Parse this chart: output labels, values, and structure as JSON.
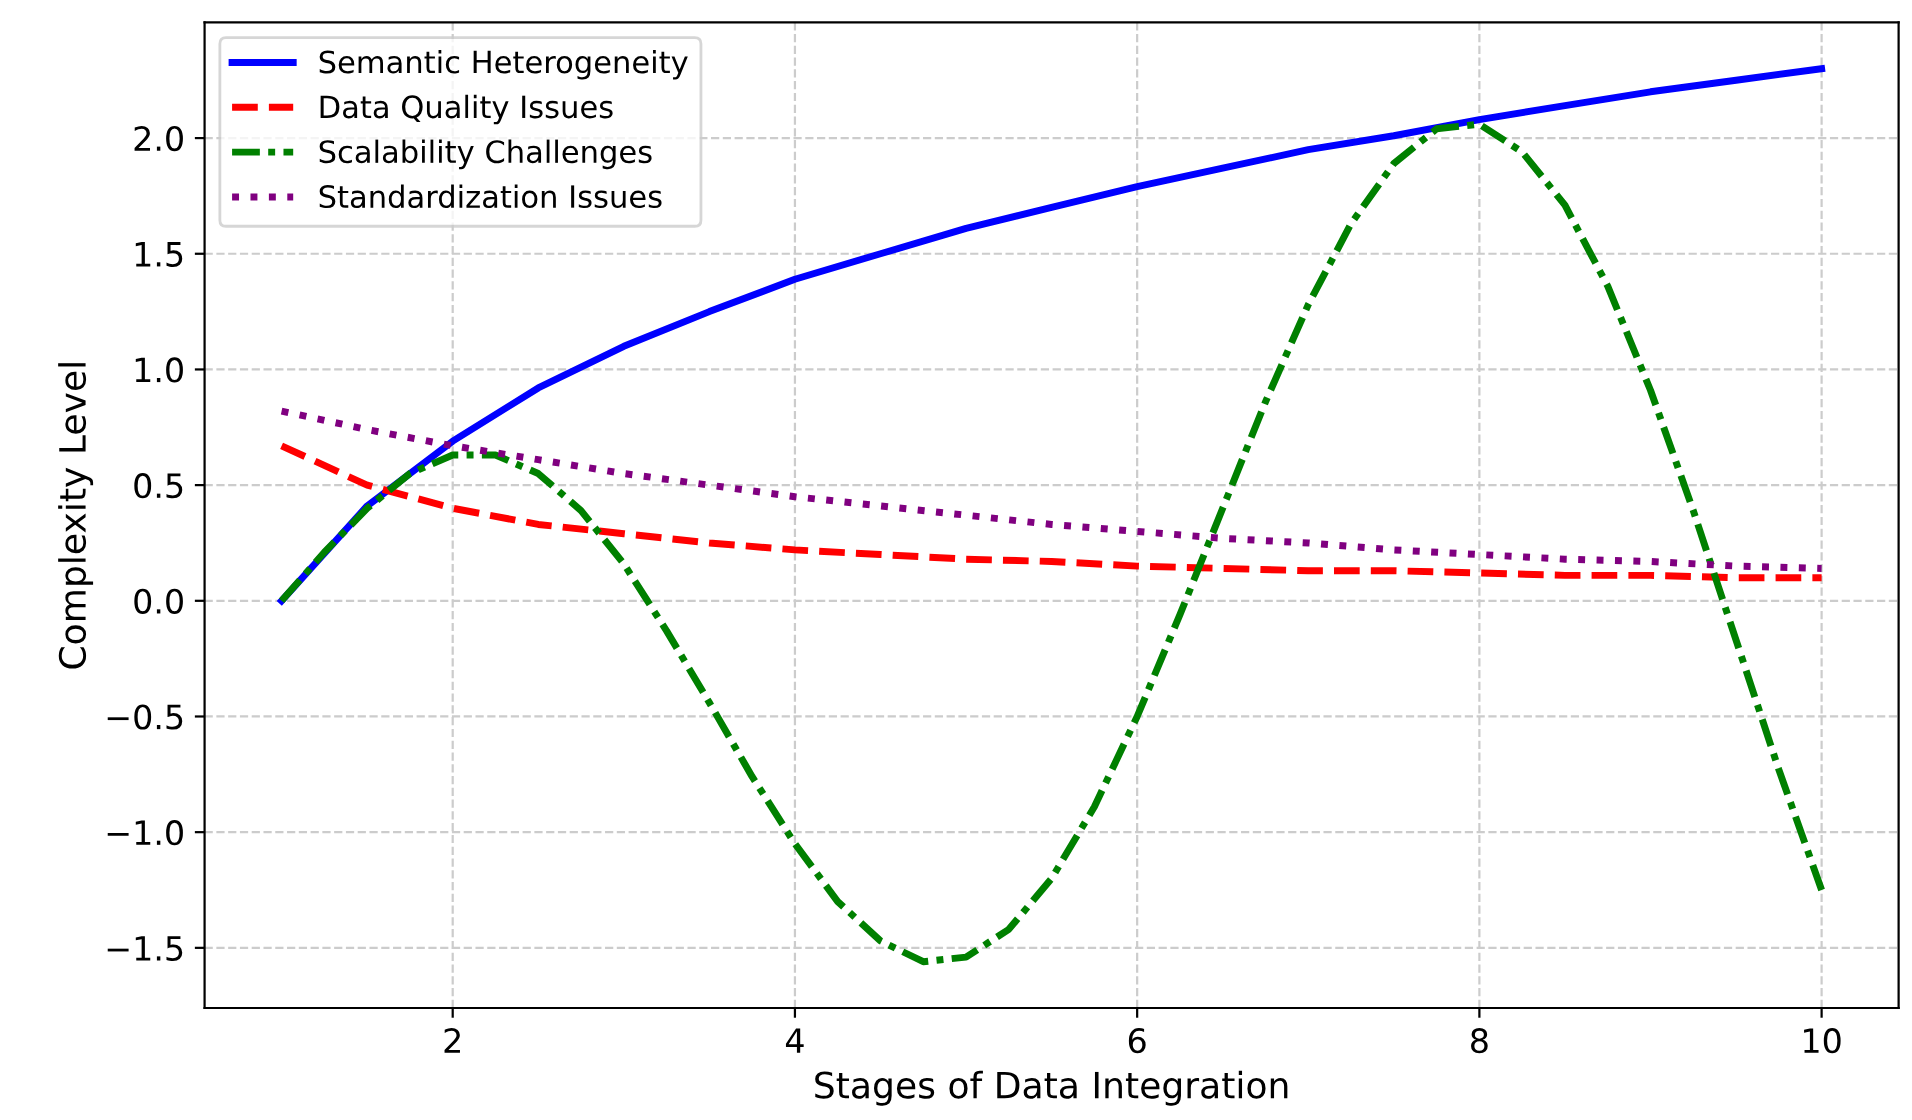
{
  "chart_data": {
    "type": "line",
    "xlabel": "Stages of Data Integration",
    "ylabel": "Complexity Level",
    "xlim": [
      0.55,
      10.45
    ],
    "xticks": [
      2,
      4,
      6,
      8,
      10
    ],
    "ylim": [
      -1.76,
      2.5
    ],
    "yticks": [
      {
        "value": -1.5,
        "label": "−1.5"
      },
      {
        "value": -1.0,
        "label": "−1.0"
      },
      {
        "value": -0.5,
        "label": "−0.5"
      },
      {
        "value": 0.0,
        "label": "0.0"
      },
      {
        "value": 0.5,
        "label": "0.5"
      },
      {
        "value": 1.0,
        "label": "1.0"
      },
      {
        "value": 1.5,
        "label": "1.5"
      },
      {
        "value": 2.0,
        "label": "2.0"
      }
    ],
    "grid": true,
    "legend": "top left",
    "marker": "none",
    "series": [
      {
        "name": "Semantic Heterogeneity",
        "color": "#0000ff",
        "line_style": "solid",
        "x": [
          1,
          1.5,
          2,
          2.5,
          3,
          3.5,
          4,
          4.5,
          5,
          5.5,
          6,
          6.5,
          7,
          7.5,
          8,
          8.5,
          9,
          9.5,
          10
        ],
        "values": [
          0,
          0.41,
          0.69,
          0.92,
          1.1,
          1.25,
          1.39,
          1.5,
          1.61,
          1.7,
          1.79,
          1.87,
          1.95,
          2.01,
          2.08,
          2.14,
          2.2,
          2.25,
          2.3
        ]
      },
      {
        "name": "Data Quality Issues",
        "color": "#ff0000",
        "line_style": "dashed",
        "x": [
          1,
          1.5,
          2,
          2.5,
          3,
          3.5,
          4,
          4.5,
          5,
          5.5,
          6,
          6.5,
          7,
          7.5,
          8,
          8.5,
          9,
          9.5,
          10
        ],
        "values": [
          0.67,
          0.5,
          0.4,
          0.33,
          0.29,
          0.25,
          0.22,
          0.2,
          0.18,
          0.17,
          0.15,
          0.14,
          0.13,
          0.13,
          0.12,
          0.11,
          0.11,
          0.1,
          0.1
        ]
      },
      {
        "name": "Scalability Challenges",
        "color": "#008000",
        "line_style": "dashdot",
        "x": [
          1,
          1.25,
          1.5,
          1.75,
          2,
          2.25,
          2.5,
          2.75,
          3,
          3.25,
          3.5,
          3.75,
          4,
          4.25,
          4.5,
          4.75,
          5,
          5.25,
          5.5,
          5.75,
          6,
          6.25,
          6.5,
          6.75,
          7,
          7.25,
          7.5,
          7.75,
          8,
          8.25,
          8.5,
          8.75,
          9,
          9.25,
          9.5,
          9.75,
          10
        ],
        "values": [
          0,
          0.21,
          0.4,
          0.55,
          0.63,
          0.63,
          0.55,
          0.39,
          0.16,
          -0.13,
          -0.44,
          -0.76,
          -1.05,
          -1.3,
          -1.47,
          -1.56,
          -1.54,
          -1.42,
          -1.2,
          -0.89,
          -0.5,
          -0.06,
          0.4,
          0.86,
          1.28,
          1.63,
          1.89,
          2.04,
          2.06,
          1.94,
          1.71,
          1.36,
          0.91,
          0.39,
          -0.17,
          -0.73,
          -1.25
        ]
      },
      {
        "name": "Standardization Issues",
        "color": "#800080",
        "line_style": "dotted",
        "x": [
          1,
          1.5,
          2,
          2.5,
          3,
          3.5,
          4,
          4.5,
          5,
          5.5,
          6,
          6.5,
          7,
          7.5,
          8,
          8.5,
          9,
          9.5,
          10
        ],
        "values": [
          0.82,
          0.74,
          0.67,
          0.61,
          0.55,
          0.5,
          0.45,
          0.41,
          0.37,
          0.33,
          0.3,
          0.27,
          0.25,
          0.22,
          0.2,
          0.18,
          0.17,
          0.15,
          0.14
        ]
      }
    ]
  }
}
